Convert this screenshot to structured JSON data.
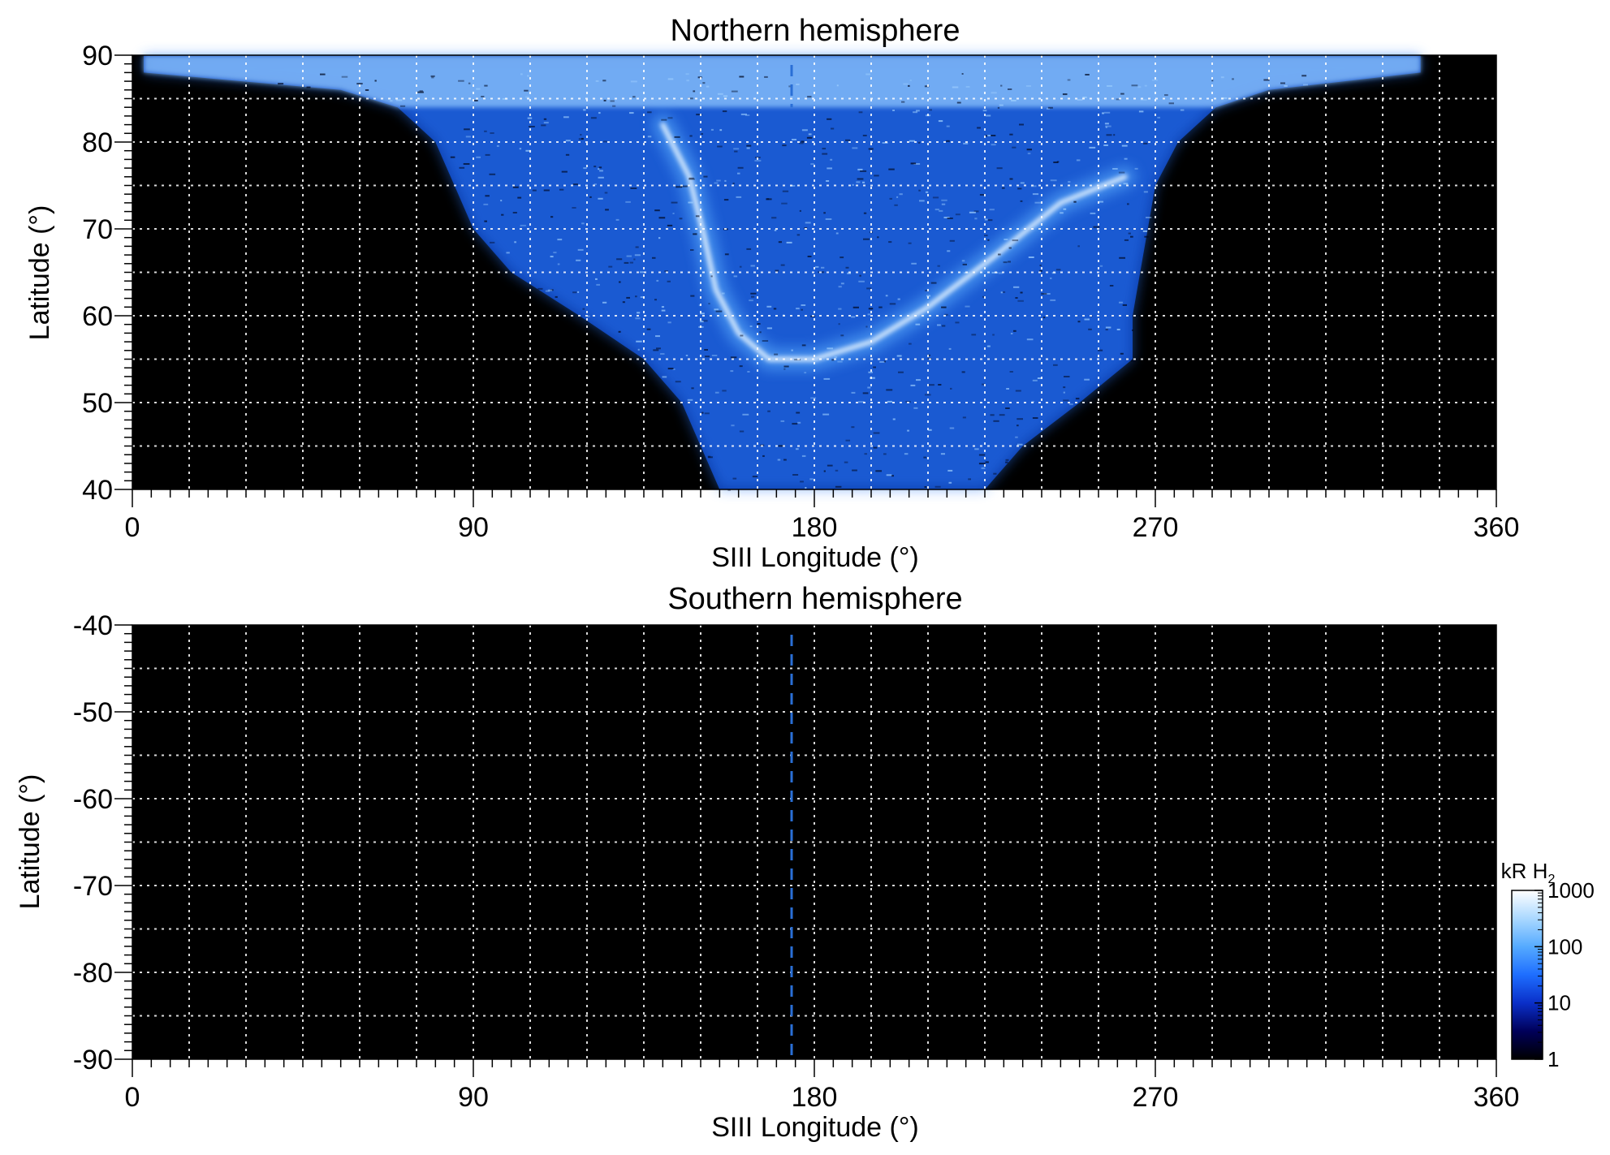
{
  "chart_data": [
    {
      "type": "heatmap",
      "title": "Northern hemisphere",
      "xlabel": "SIII Longitude (°)",
      "ylabel": "Latitude (°)",
      "xlim": [
        0,
        360
      ],
      "ylim": [
        40,
        90
      ],
      "x_ticks": [
        "0",
        "90",
        "180",
        "270",
        "360"
      ],
      "y_ticks": [
        "40",
        "50",
        "60",
        "70",
        "80",
        "90"
      ],
      "grid": true,
      "reference_line_longitude": 174,
      "emission_region": {
        "longitude_extent_high_lat": [
          0,
          360
        ],
        "longitude_extent_low_lat": [
          155,
          225
        ],
        "boundary": [
          {
            "lat": 88,
            "lon_min": 3,
            "lon_max": 340
          },
          {
            "lat": 86,
            "lon_min": 55,
            "lon_max": 300
          },
          {
            "lat": 84,
            "lon_min": 70,
            "lon_max": 286
          },
          {
            "lat": 80,
            "lon_min": 80,
            "lon_max": 276
          },
          {
            "lat": 75,
            "lon_min": 85,
            "lon_max": 270
          },
          {
            "lat": 70,
            "lon_min": 90,
            "lon_max": 268
          },
          {
            "lat": 65,
            "lon_min": 100,
            "lon_max": 266
          },
          {
            "lat": 60,
            "lon_min": 118,
            "lon_max": 264
          },
          {
            "lat": 55,
            "lon_min": 135,
            "lon_max": 264
          },
          {
            "lat": 50,
            "lon_min": 145,
            "lon_max": 250
          },
          {
            "lat": 45,
            "lon_min": 150,
            "lon_max": 235
          },
          {
            "lat": 40,
            "lon_min": 155,
            "lon_max": 225
          }
        ],
        "main_oval": [
          {
            "lon": 140,
            "lat": 82
          },
          {
            "lon": 147,
            "lat": 76
          },
          {
            "lon": 151,
            "lat": 69
          },
          {
            "lon": 154,
            "lat": 63
          },
          {
            "lon": 160,
            "lat": 58
          },
          {
            "lon": 168,
            "lat": 55
          },
          {
            "lon": 180,
            "lat": 55
          },
          {
            "lon": 195,
            "lat": 57
          },
          {
            "lon": 210,
            "lat": 61
          },
          {
            "lon": 228,
            "lat": 67
          },
          {
            "lon": 245,
            "lat": 73
          },
          {
            "lon": 262,
            "lat": 76
          }
        ],
        "brightness_unit_note": "kR H2"
      }
    },
    {
      "type": "heatmap",
      "title": "Southern hemisphere",
      "xlabel": "SIII Longitude (°)",
      "ylabel": "Latitude (°)",
      "xlim": [
        0,
        360
      ],
      "ylim": [
        -90,
        -40
      ],
      "x_ticks": [
        "0",
        "90",
        "180",
        "270",
        "360"
      ],
      "y_ticks": [
        "-40",
        "-50",
        "-60",
        "-70",
        "-80",
        "-90"
      ],
      "grid": true,
      "reference_line_longitude": 174,
      "emission_region": null
    }
  ],
  "colorbar": {
    "unit_main": "kR H",
    "unit_sub": "2",
    "scale": "log",
    "range": [
      1,
      1000
    ],
    "ticks": [
      "1",
      "10",
      "100",
      "1000"
    ],
    "colors": [
      "#000000",
      "#00005a",
      "#0a2fc8",
      "#1e6eff",
      "#55aaff",
      "#aad8ff",
      "#ffffff"
    ]
  }
}
